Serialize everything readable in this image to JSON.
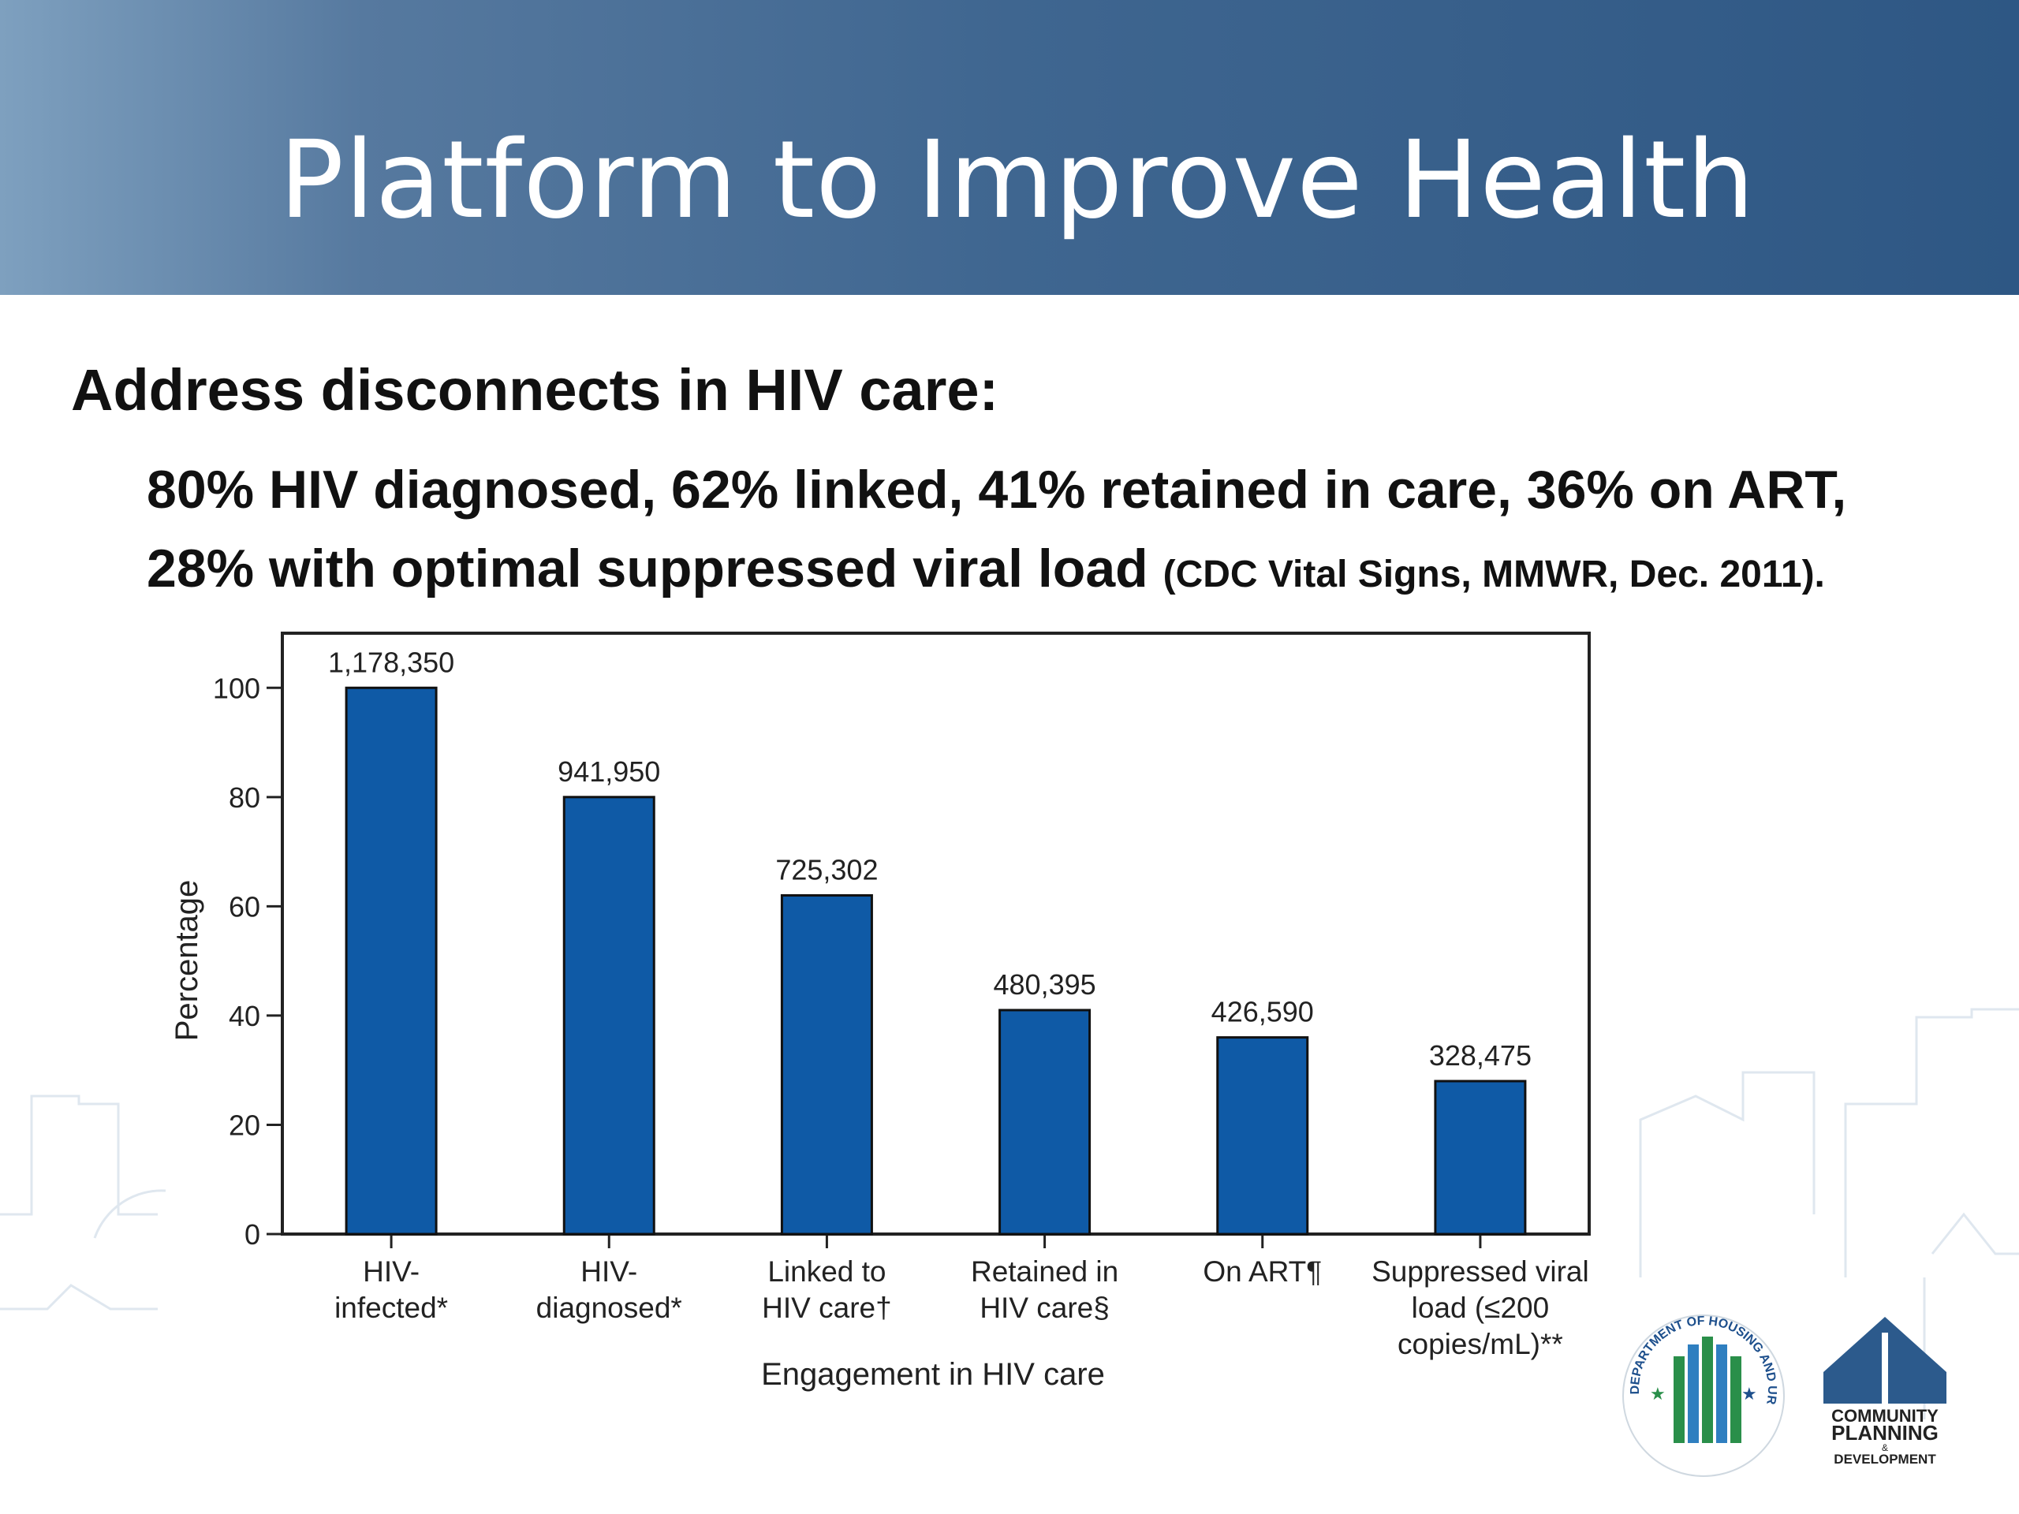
{
  "slide": {
    "title": "Platform to Improve Health",
    "heading": "Address disconnects in HIV care:",
    "stat_line1": "80% HIV diagnosed, 62% linked, 41% retained in care, 36% on ART,",
    "stat_line2": "28% with optimal suppressed viral load",
    "citation": "(CDC Vital Signs, MMWR,  Dec. 2011)."
  },
  "colors": {
    "header": "#3f6690",
    "bar": "#0f5aa6",
    "text": "#111111"
  },
  "chart_data": {
    "type": "bar",
    "categories": [
      [
        "HIV-",
        "infected*"
      ],
      [
        "HIV-",
        "diagnosed*"
      ],
      [
        "Linked to",
        "HIV care†"
      ],
      [
        "Retained in",
        "HIV care§"
      ],
      [
        "On ART¶"
      ],
      [
        "Suppressed viral",
        "load (≤200",
        "copies/mL)**"
      ]
    ],
    "values": [
      100,
      80,
      62,
      41,
      36,
      28
    ],
    "data_labels": [
      "1,178,350",
      "941,950",
      "725,302",
      "480,395",
      "426,590",
      "328,475"
    ],
    "xlabel": "Engagement in HIV care",
    "ylabel": "Percentage",
    "ylim": [
      0,
      110
    ],
    "yticks": [
      0,
      20,
      40,
      60,
      80,
      100
    ],
    "grid": false,
    "legend": "none"
  },
  "logos": {
    "hud_seal_text": "DEPARTMENT OF HOUSING AND URBAN DEVELOPMENT",
    "cpd_lines": [
      "COMMUNITY",
      "PLANNING",
      "&",
      "DEVELOPMENT"
    ]
  }
}
